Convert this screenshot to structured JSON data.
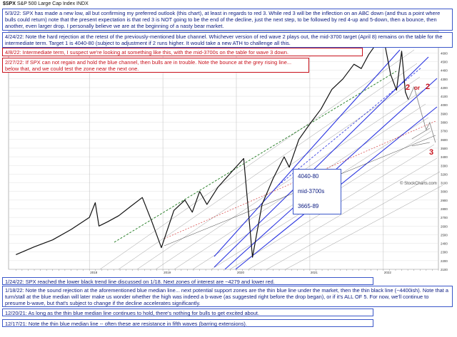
{
  "header": {
    "symbol": "$SPX",
    "name": "S&P 500 Large Cap Index",
    "exchange": "INDX"
  },
  "colors": {
    "blue_note": "#0a1a80",
    "red_note": "#c8101a",
    "channel_blue": "#2a34e0",
    "grid": "#d8d8d8",
    "price": "#111111",
    "green_dash": "#1f7a1f",
    "red_dash": "#d02020"
  },
  "notes": {
    "n0503": "5/3/22:  SPX has made a new low, all but confirming my preferred outlook (this chart), at least in regards to red 3.  While red 3 will be the inflection on an ABC down (and thus a point where bulls could return) note that the present expectation is that red 3 is NOT going to be the end of the decline, just the next step, to be followed by red 4-up and 5-down, then a bounce, then another, even larger drop.  I personally believe we are at the beginning of a nasty bear market.",
    "n0424": "4/24/22:  Note the hard rejection at the retest of the previously-mentioned blue channel.  Whichever version of red wave 2 plays out, the mid-3700 target (April 8) remains on the table for the intermediate term.  Target 1 is 4040-80 (subject to adjustment if 2 runs higher.   It would take a new ATH to challenge all this.",
    "n0408": "4/8/22:  Intermediate term, I suspect we're looking at something like this, with the mid-3700s on the table for wave 3 down.",
    "n0227": "2/27/22:  If SPX can not regain and hold the blue channel, then bulls are in trouble.  Note the bounce at the grey rising line... below that, and we could test the zone near the next one.",
    "n0124": "1/24/22:  SPX reached the lower black trend line discussed on 1/18.  Next zones of interest are ~4279 and lower red.",
    "n0118": "1/18/22:  Note the sound rejection at the aforementioned blue median line... next potential support zones are the thin blue line under the market, then the thin black line (~4400ish).  Note that a turn/stall at the blue median will later make us wonder whether the high was indeed a b-wave (as suggested right before the drop began), or if it's ALL OF 5.  For now, we'll continue to presume b-wave, but that's subject to change if the decline accelerates significantly.",
    "n1220": "12/20/21:  As long as the thin blue median line continues to hold, there's nothing for bulls to get excited about.",
    "n1217": "12/17/21:  Note the thin blue median line -- often these are resistance in fifth waves (barring extensions)."
  },
  "targets": [
    "4040-80",
    "mid-3700s",
    "3665-89"
  ],
  "wave_labels": {
    "w2": "2",
    "or": "or",
    "w2b": "2",
    "w3": "3"
  },
  "watermark": "© StockCharts.com",
  "chart_data": {
    "type": "line",
    "title": "$SPX S&P 500 Large Cap Index INDX",
    "xlabel": "",
    "ylabel": "",
    "x_tick_labels": [
      "2018",
      "2019",
      "2020",
      "2021",
      "2022"
    ],
    "y_tick_labels": [
      "2100",
      "2200",
      "2300",
      "2400",
      "2500",
      "2600",
      "2700",
      "2800",
      "2900",
      "3000",
      "3100",
      "3200",
      "3300",
      "3400",
      "3500",
      "3600",
      "3700",
      "3800",
      "3900",
      "4000",
      "4100",
      "4200",
      "4300",
      "4400",
      "4500",
      "4600",
      "4700",
      "4800"
    ],
    "ylim": [
      2100,
      4850
    ],
    "x": [
      2017.0,
      2017.25,
      2017.5,
      2017.75,
      2018.0,
      2018.08,
      2018.13,
      2018.25,
      2018.4,
      2018.55,
      2018.72,
      2018.85,
      2018.98,
      2019.15,
      2019.3,
      2019.4,
      2019.5,
      2019.6,
      2019.75,
      2019.95,
      2020.1,
      2020.22,
      2020.35,
      2020.5,
      2020.65,
      2020.72,
      2020.85,
      2021.0,
      2021.15,
      2021.3,
      2021.45,
      2021.6,
      2021.7,
      2021.8,
      2021.9,
      2022.0,
      2022.1,
      2022.18,
      2022.25,
      2022.3,
      2022.34
    ],
    "values": [
      2270,
      2360,
      2440,
      2560,
      2700,
      2870,
      2600,
      2650,
      2720,
      2820,
      2930,
      2650,
      2350,
      2780,
      2900,
      2760,
      3000,
      2850,
      3050,
      3240,
      3380,
      2240,
      2850,
      3150,
      3400,
      3280,
      3600,
      3780,
      3950,
      4180,
      4300,
      4470,
      4420,
      4580,
      4700,
      4790,
      4350,
      4170,
      4620,
      4150,
      4060
    ],
    "series": [
      {
        "name": "SPX close",
        "kind": "price"
      }
    ]
  }
}
